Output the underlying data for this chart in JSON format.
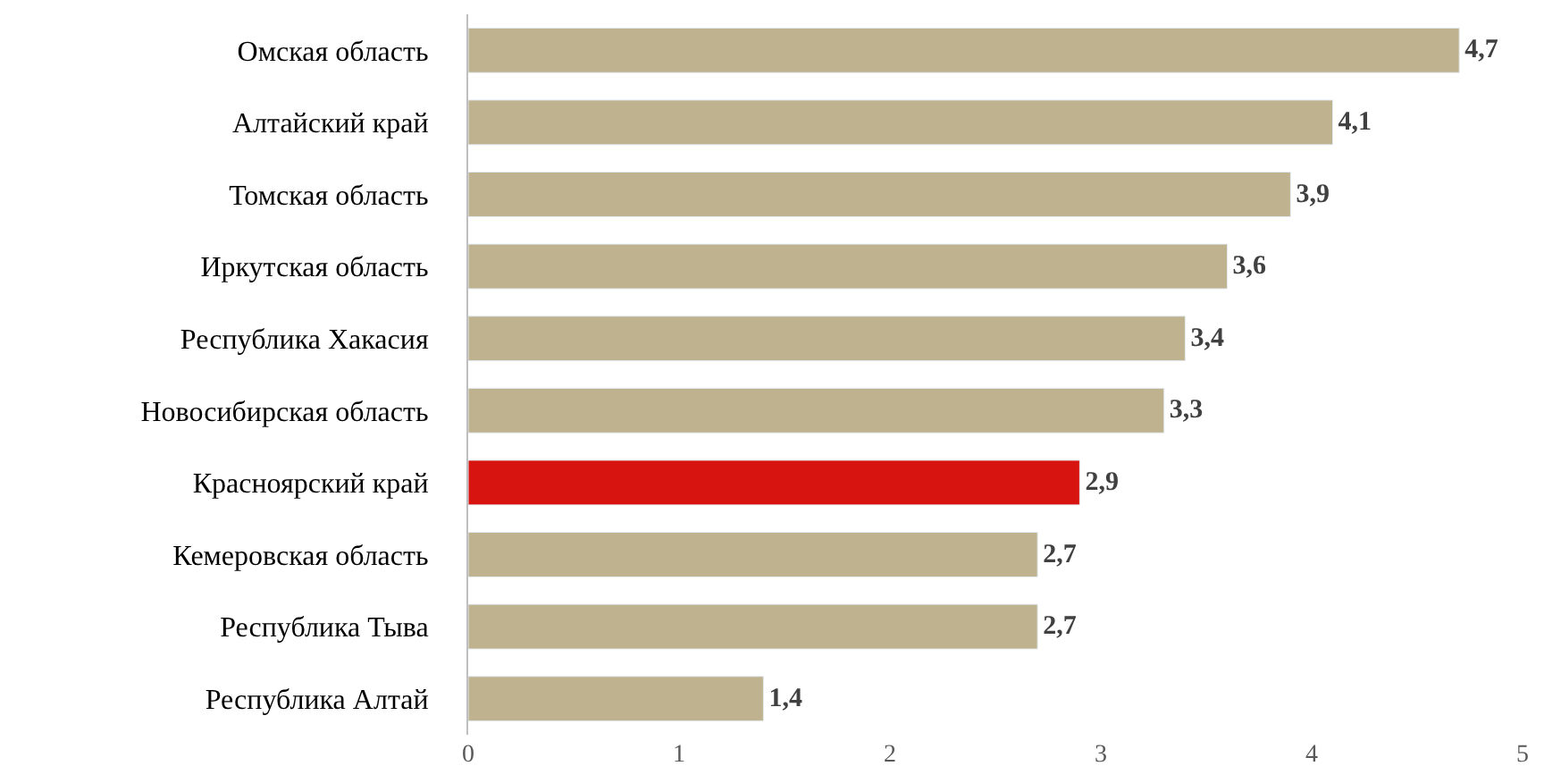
{
  "chart_data": {
    "type": "bar",
    "orientation": "horizontal",
    "categories": [
      "Омская область",
      "Алтайский край",
      "Томская область",
      "Иркутская область",
      "Республика Хакасия",
      "Новосибирская область",
      "Красноярский край",
      "Кемеровская область",
      "Республика Тыва",
      "Республика Алтай"
    ],
    "values": [
      4.7,
      4.1,
      3.9,
      3.6,
      3.4,
      3.3,
      2.9,
      2.7,
      2.7,
      1.4
    ],
    "value_labels": [
      "4,7",
      "4,1",
      "3,9",
      "3,6",
      "3,4",
      "3,3",
      "2,9",
      "2,7",
      "2,7",
      "1,4"
    ],
    "colors": [
      "#bfb38f",
      "#bfb38f",
      "#bfb38f",
      "#bfb38f",
      "#bfb38f",
      "#bfb38f",
      "#d7140f",
      "#bfb38f",
      "#bfb38f",
      "#bfb38f"
    ],
    "xlim": [
      0,
      5
    ],
    "xticks": [
      0,
      1,
      2,
      3,
      4,
      5
    ]
  }
}
